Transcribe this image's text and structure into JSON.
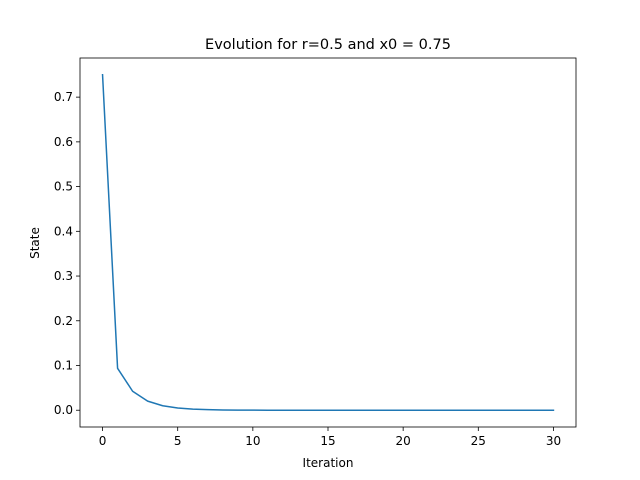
{
  "chart_data": {
    "type": "line",
    "title": "Evolution for r=0.5 and x0 = 0.75",
    "xlabel": "Iteration",
    "ylabel": "State",
    "xlim": [
      -1.5,
      31.5
    ],
    "ylim": [
      -0.0375,
      0.7875
    ],
    "xticks": [
      0,
      5,
      10,
      15,
      20,
      25,
      30
    ],
    "yticks": [
      0.0,
      0.1,
      0.2,
      0.3,
      0.4,
      0.5,
      0.6,
      0.7
    ],
    "ytick_labels": [
      "0.0",
      "0.1",
      "0.2",
      "0.3",
      "0.4",
      "0.5",
      "0.6",
      "0.7"
    ],
    "grid": false,
    "series": [
      {
        "name": "state",
        "color": "#1f77b4",
        "x": [
          0,
          1,
          2,
          3,
          4,
          5,
          6,
          7,
          8,
          9,
          10,
          11,
          12,
          13,
          14,
          15,
          16,
          17,
          18,
          19,
          20,
          21,
          22,
          23,
          24,
          25,
          26,
          27,
          28,
          29,
          30
        ],
        "y": [
          0.75,
          0.09375,
          0.04248,
          0.02034,
          0.00996,
          0.00493,
          0.00245,
          0.00122,
          0.00061,
          0.0003,
          0.00015,
          8e-05,
          4e-05,
          2e-05,
          1e-05,
          0.0,
          0.0,
          0.0,
          0.0,
          0.0,
          0.0,
          0.0,
          0.0,
          0.0,
          0.0,
          0.0,
          0.0,
          0.0,
          0.0,
          0.0,
          0.0
        ]
      }
    ]
  }
}
